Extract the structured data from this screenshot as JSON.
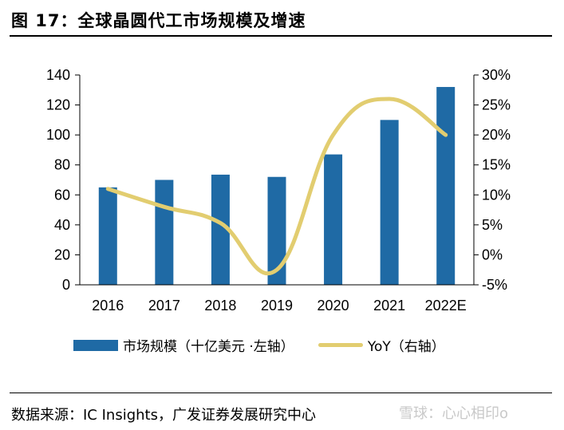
{
  "title": "图 17：全球晶圆代工市场规模及增速",
  "source": "数据来源：IC Insights，广发证券发展研究中心",
  "watermark": "雪球：心心相印o",
  "colors": {
    "bar": "#1f6aa5",
    "line": "#e2cd70"
  },
  "chart_data": {
    "type": "bar",
    "categories": [
      "2016",
      "2017",
      "2018",
      "2019",
      "2020",
      "2021",
      "2022E"
    ],
    "series": [
      {
        "name": "市场规模（十亿美元 ·左轴）",
        "type": "bar",
        "axis": "left",
        "values": [
          65,
          70,
          73.5,
          72,
          87,
          110,
          132
        ]
      },
      {
        "name": "YoY（右轴）",
        "type": "line",
        "axis": "right",
        "smooth": true,
        "values": [
          11,
          8,
          5.3,
          -2.5,
          20,
          26,
          20
        ]
      }
    ],
    "y_left": {
      "range": [
        0,
        140
      ],
      "ticks": [
        0,
        20,
        40,
        60,
        80,
        100,
        120,
        140
      ]
    },
    "y_right": {
      "range": [
        -5,
        30
      ],
      "ticks": [
        "-5%",
        "0%",
        "5%",
        "10%",
        "15%",
        "20%",
        "25%",
        "30%"
      ]
    },
    "legend": "bottom"
  }
}
